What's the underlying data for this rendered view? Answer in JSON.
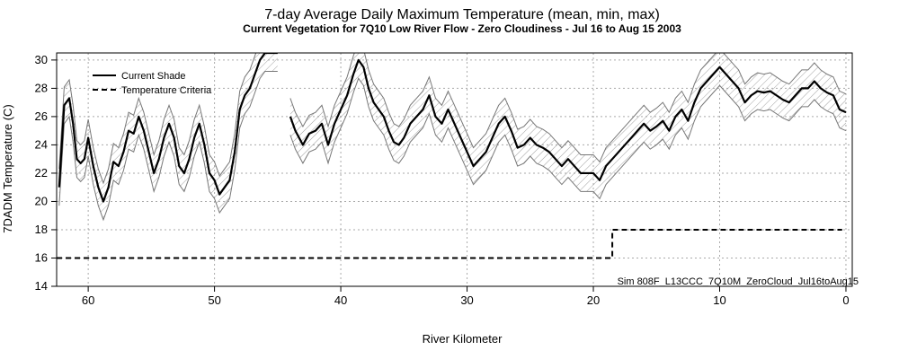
{
  "chart_data": {
    "type": "line",
    "title": "7-day Average Daily Maximum Temperature (mean, min, max)",
    "subtitle": "Current Vegetation for  7Q10 Low River Flow -  Zero Cloudiness  -  Jul 16 to Aug 15 2003",
    "xlabel": "River Kilometer",
    "ylabel": "7DADM Temperature (C)",
    "xlim": [
      62.5,
      -0.5
    ],
    "ylim": [
      14,
      30.5
    ],
    "x_ticks": [
      60,
      50,
      40,
      30,
      20,
      10,
      0
    ],
    "y_ticks": [
      14,
      16,
      18,
      20,
      22,
      24,
      26,
      28,
      30
    ],
    "grid": true,
    "legend_position": "top-left",
    "legend": [
      "Current Shade",
      "Temperature Criteria"
    ],
    "annotation": "Sim 808F_L13CCC_7Q10M_ZeroCloud_Jul16toAug15",
    "series": [
      {
        "name": "Current Shade",
        "style": "solid",
        "segments": [
          {
            "x": [
              62.3,
              61.9,
              61.5,
              61.2,
              60.9,
              60.6,
              60.3,
              60.0,
              59.6,
              59.2,
              58.8,
              58.4,
              58.0,
              57.6,
              57.2,
              56.8,
              56.4,
              56.0,
              55.6,
              55.2,
              54.8,
              54.4,
              54.0,
              53.6,
              53.2,
              52.8,
              52.4,
              52.0,
              51.6,
              51.2,
              50.8,
              50.4,
              50.0,
              49.6,
              49.2,
              48.8,
              48.4,
              48.0,
              47.6,
              47.2,
              46.8,
              46.4,
              46.0,
              45.6,
              45.2,
              45.0
            ],
            "y": [
              21.0,
              26.8,
              27.3,
              25.5,
              23.0,
              22.7,
              23.0,
              24.5,
              22.5,
              21.0,
              20.0,
              21.0,
              22.8,
              22.5,
              23.5,
              25.0,
              24.8,
              26.0,
              25.0,
              23.5,
              22.0,
              23.0,
              24.5,
              25.5,
              24.5,
              22.5,
              22.0,
              23.0,
              24.5,
              25.5,
              24.0,
              22.0,
              21.5,
              20.5,
              21.0,
              21.5,
              23.5,
              26.5,
              27.5,
              28.0,
              29.0,
              30.0,
              30.5,
              30.5,
              30.5,
              30.5
            ]
          },
          {
            "x": [
              44.0,
              43.6,
              43.0,
              42.5,
              42.0,
              41.5,
              41.0,
              40.5,
              40.0,
              39.5,
              39.0,
              38.6,
              38.2,
              37.8,
              37.4,
              37.0,
              36.6,
              36.2,
              35.8,
              35.4,
              35.0,
              34.5,
              34.0,
              33.5,
              33.0,
              32.5,
              32.0,
              31.5,
              31.0,
              30.5,
              30.0,
              29.5,
              29.0,
              28.5,
              28.0,
              27.5,
              27.0,
              26.5,
              26.0,
              25.5,
              25.0,
              24.5,
              24.0,
              23.5,
              23.0,
              22.5,
              22.0,
              21.5,
              21.0,
              20.5,
              20.0,
              19.5,
              19.0,
              18.5,
              18.0,
              17.5,
              17.0,
              16.5,
              16.0,
              15.5,
              15.0,
              14.5,
              14.0,
              13.5,
              13.0,
              12.5,
              12.0,
              11.5,
              11.0,
              10.5,
              10.0,
              9.5,
              9.0,
              8.5,
              8.0,
              7.5,
              7.0,
              6.5,
              6.0,
              5.5,
              5.0,
              4.5,
              4.0,
              3.5,
              3.0,
              2.5,
              2.0,
              1.5,
              1.0,
              0.5,
              0.0
            ],
            "y": [
              26.0,
              25.0,
              24.0,
              24.8,
              25.0,
              25.5,
              24.0,
              25.5,
              26.5,
              27.5,
              29.0,
              30.0,
              29.5,
              28.0,
              27.0,
              26.5,
              26.0,
              25.0,
              24.2,
              24.0,
              24.5,
              25.5,
              26.0,
              26.5,
              27.5,
              26.0,
              25.5,
              26.5,
              25.5,
              24.5,
              23.5,
              22.5,
              23.0,
              23.5,
              24.5,
              25.5,
              26.0,
              25.0,
              23.8,
              24.0,
              24.5,
              24.0,
              23.8,
              23.5,
              23.0,
              22.5,
              23.0,
              22.5,
              22.0,
              22.0,
              22.0,
              21.5,
              22.5,
              23.0,
              23.5,
              24.0,
              24.5,
              25.0,
              25.5,
              25.0,
              25.3,
              25.7,
              25.0,
              26.0,
              26.5,
              25.7,
              27.0,
              28.0,
              28.5,
              29.0,
              29.5,
              29.0,
              28.5,
              28.0,
              27.0,
              27.5,
              27.8,
              27.7,
              27.8,
              27.5,
              27.2,
              27.0,
              27.5,
              28.0,
              28.0,
              28.5,
              28.0,
              27.7,
              27.5,
              26.5,
              26.3
            ]
          }
        ]
      },
      {
        "name": "Temperature Criteria",
        "style": "dashed",
        "x": [
          62.5,
          18.5,
          18.5,
          0.3
        ],
        "y": [
          16,
          16,
          18,
          18
        ]
      }
    ],
    "range_band": {
      "style": "hatched",
      "half_width": 1.3
    }
  }
}
